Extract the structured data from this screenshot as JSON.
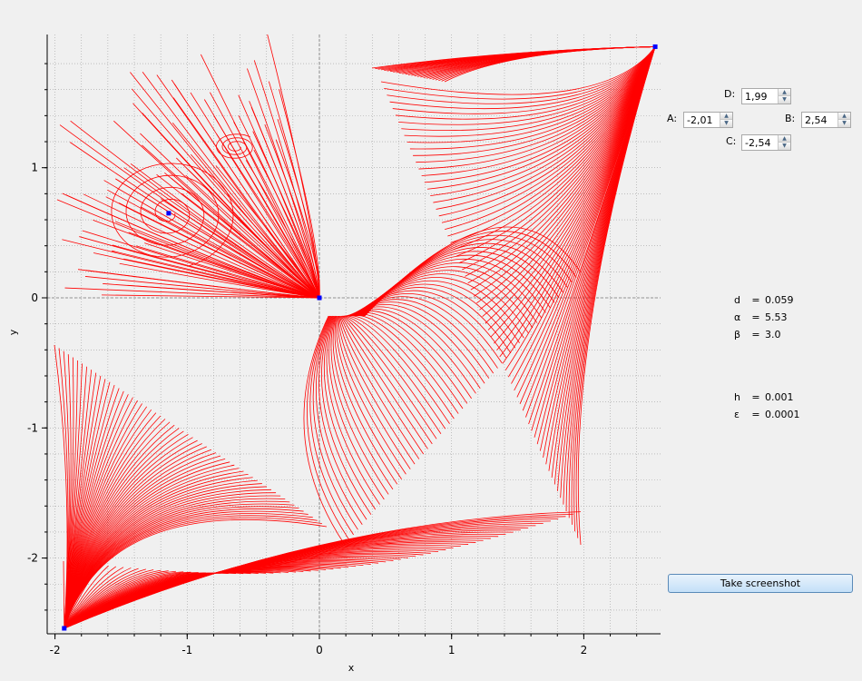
{
  "params": {
    "D": {
      "label": "D:",
      "value": "1,99"
    },
    "A": {
      "label": "A:",
      "value": "-2,01"
    },
    "B": {
      "label": "B:",
      "value": "2,54"
    },
    "C": {
      "label": "C:",
      "value": "-2,54"
    }
  },
  "stats": [
    {
      "symbol": "d",
      "eq": "=",
      "value": "0.059"
    },
    {
      "symbol": "α",
      "eq": "=",
      "value": "5.53"
    },
    {
      "symbol": "β",
      "eq": "=",
      "value": "3.0"
    },
    {
      "symbol": "h",
      "eq": "=",
      "value": "0.001"
    },
    {
      "symbol": "ε",
      "eq": "=",
      "value": "0.0001"
    }
  ],
  "screenshot_button": {
    "label": "Take screenshot"
  },
  "colors": {
    "trajectory": "#ff0000",
    "point": "#0000ff",
    "grid": "#a0a0a0",
    "background": "#f0f0f0"
  },
  "chart_data": {
    "type": "line",
    "title": "",
    "xlabel": "x",
    "ylabel": "y",
    "xlim": [
      -2.01,
      2.54
    ],
    "ylim": [
      -2.54,
      1.99
    ],
    "x_ticks": [
      -2,
      -1,
      0,
      1,
      2
    ],
    "x_tick_labels": [
      "-2",
      "-1",
      "0",
      "1",
      "2"
    ],
    "y_ticks": [
      -2,
      -1,
      0,
      1
    ],
    "y_tick_labels": [
      "-2",
      "-1",
      "0",
      "1"
    ],
    "grid": true,
    "equilibrium_points": [
      {
        "x": -1.93,
        "y": -2.54
      },
      {
        "x": -1.14,
        "y": 0.65
      },
      {
        "x": 0.0,
        "y": 0.0
      },
      {
        "x": 2.54,
        "y": 1.93
      }
    ],
    "series": []
  }
}
